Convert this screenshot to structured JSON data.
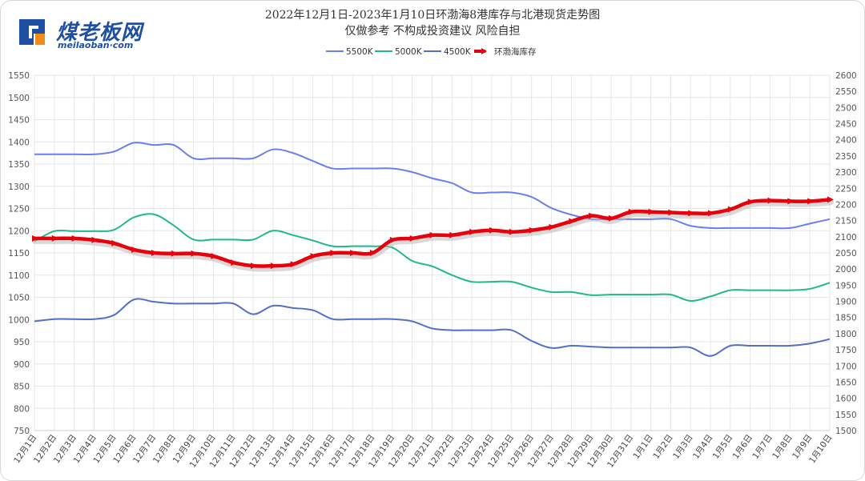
{
  "brand": {
    "name": "煤老板网",
    "domain": "meilaoban·com"
  },
  "chart_data": {
    "type": "line",
    "title": "2022年12月1日-2023年1月10日环渤海8港库存与北港现货走势图",
    "subtitle": "仅做参考 不构成投资建议 风险自担",
    "categories": [
      "12月1日",
      "12月2日",
      "12月3日",
      "12月4日",
      "12月5日",
      "12月6日",
      "12月7日",
      "12月8日",
      "12月9日",
      "12月10日",
      "12月11日",
      "12月12日",
      "12月13日",
      "12月14日",
      "12月15日",
      "12月16日",
      "12月17日",
      "12月18日",
      "12月19日",
      "12月20日",
      "12月21日",
      "12月22日",
      "12月23日",
      "12月24日",
      "12月25日",
      "12月26日",
      "12月27日",
      "12月28日",
      "12月29日",
      "12月30日",
      "12月31日",
      "1月1日",
      "1月2日",
      "1月3日",
      "1月4日",
      "1月5日",
      "1月6日",
      "1月7日",
      "1月8日",
      "1月9日",
      "1月10日"
    ],
    "left_axis": {
      "min": 750,
      "max": 1550,
      "step": 50
    },
    "right_axis": {
      "min": 1500,
      "max": 2600,
      "step": 50
    },
    "grid": true,
    "legend_position": "top-center",
    "series": [
      {
        "name": "5500K",
        "axis": "left",
        "color": "#6a7ff0",
        "values": [
          1372,
          1372,
          1372,
          1372,
          1378,
          1398,
          1393,
          1393,
          1363,
          1363,
          1363,
          1363,
          1383,
          1375,
          1357,
          1340,
          1340,
          1340,
          1340,
          1332,
          1318,
          1307,
          1286,
          1286,
          1286,
          1276,
          1251,
          1236,
          1226,
          1226,
          1226,
          1226,
          1226,
          1211,
          1206,
          1206,
          1206,
          1206,
          1206,
          1216,
          1226
        ]
      },
      {
        "name": "5000K",
        "axis": "left",
        "color": "#1fba8a",
        "values": [
          1176,
          1199,
          1199,
          1199,
          1202,
          1230,
          1237,
          1212,
          1180,
          1180,
          1180,
          1180,
          1200,
          1190,
          1178,
          1165,
          1165,
          1165,
          1162,
          1132,
          1120,
          1100,
          1085,
          1085,
          1085,
          1072,
          1062,
          1062,
          1055,
          1056,
          1056,
          1056,
          1056,
          1042,
          1052,
          1066,
          1066,
          1066,
          1066,
          1069,
          1083
        ]
      },
      {
        "name": "4500K",
        "axis": "left",
        "color": "#5470c6",
        "values": [
          996,
          1001,
          1001,
          1001,
          1010,
          1045,
          1040,
          1036,
          1036,
          1036,
          1036,
          1012,
          1031,
          1026,
          1021,
          1001,
          1001,
          1001,
          1001,
          996,
          980,
          976,
          976,
          976,
          976,
          952,
          936,
          941,
          939,
          937,
          937,
          937,
          937,
          937,
          918,
          941,
          941,
          941,
          941,
          946,
          956
        ]
      },
      {
        "name": "环渤海库存",
        "axis": "right",
        "color": "#e8000b",
        "values": [
          2095,
          2095,
          2095,
          2090,
          2080,
          2060,
          2050,
          2048,
          2048,
          2040,
          2020,
          2010,
          2010,
          2015,
          2040,
          2050,
          2050,
          2050,
          2090,
          2095,
          2105,
          2105,
          2115,
          2120,
          2115,
          2120,
          2130,
          2148,
          2165,
          2157,
          2177,
          2177,
          2175,
          2173,
          2173,
          2185,
          2208,
          2212,
          2210,
          2210,
          2215
        ]
      }
    ]
  }
}
